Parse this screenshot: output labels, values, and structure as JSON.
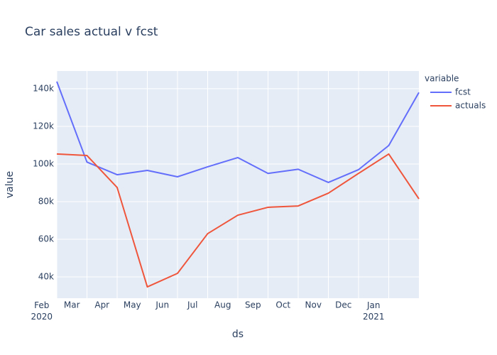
{
  "chart_data": {
    "type": "line",
    "title": "Car sales actual v fcst",
    "x": [
      "2020-01",
      "2020-02",
      "2020-03",
      "2020-04",
      "2020-05",
      "2020-06",
      "2020-07",
      "2020-08",
      "2020-09",
      "2020-10",
      "2020-11",
      "2020-12",
      "2021-01"
    ],
    "series": [
      {
        "name": "fcst",
        "color": "#636efa",
        "values": [
          143800,
          101000,
          94300,
          96600,
          93200,
          98500,
          103400,
          95000,
          97200,
          90200,
          97000,
          109800,
          138000
        ]
      },
      {
        "name": "actuals",
        "color": "#ef553b",
        "values": [
          105300,
          104500,
          87500,
          34700,
          41900,
          63000,
          72800,
          77000,
          77700,
          84500,
          95000,
          105300,
          81500
        ]
      }
    ],
    "xlabel": "ds",
    "ylabel": "value",
    "legend_title": "variable",
    "legend": "outside-right",
    "xlim": [
      "2020-01",
      "2021-01"
    ],
    "xticks": [
      {
        "value": "2020-02",
        "label": "Feb 2020"
      },
      {
        "value": "2020-03",
        "label": "Mar"
      },
      {
        "value": "2020-04",
        "label": "Apr"
      },
      {
        "value": "2020-05",
        "label": "May"
      },
      {
        "value": "2020-06",
        "label": "Jun"
      },
      {
        "value": "2020-07",
        "label": "Jul"
      },
      {
        "value": "2020-08",
        "label": "Aug"
      },
      {
        "value": "2020-09",
        "label": "Sep"
      },
      {
        "value": "2020-10",
        "label": "Oct"
      },
      {
        "value": "2020-11",
        "label": "Nov"
      },
      {
        "value": "2020-12",
        "label": "Dec"
      },
      {
        "value": "2021-01",
        "label": "Jan 2021"
      }
    ],
    "ylim": [
      28700,
      149400
    ],
    "yticks": [
      {
        "value": 40000,
        "label": "40k"
      },
      {
        "value": 60000,
        "label": "60k"
      },
      {
        "value": 80000,
        "label": "80k"
      },
      {
        "value": 100000,
        "label": "100k"
      },
      {
        "value": 120000,
        "label": "120k"
      },
      {
        "value": 140000,
        "label": "140k"
      }
    ],
    "grid": true
  }
}
